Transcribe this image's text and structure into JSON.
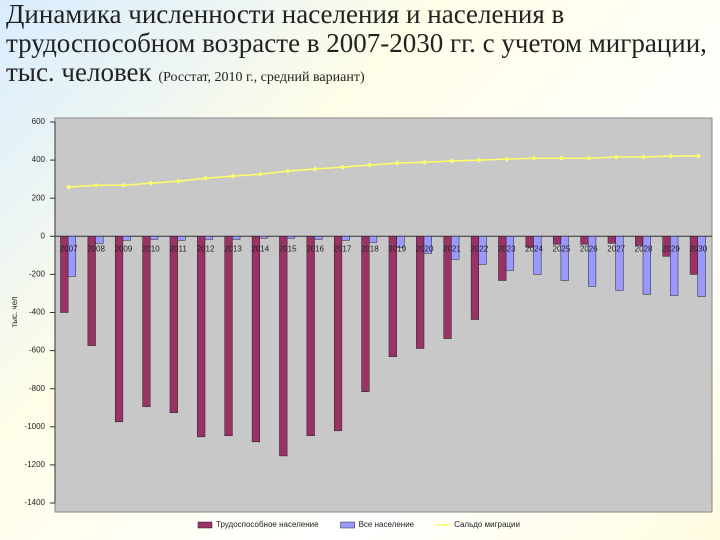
{
  "chart_data": {
    "type": "bar",
    "title": "Динамика численности населения и населения в трудоспособном возрасте в 2007-2030 гг. с учетом миграции, тыс. человек",
    "subtitle": "(Росстат, 2010 г., средний вариант)",
    "y_label": "тыс. чел",
    "categories": [
      "2007",
      "2008",
      "2009",
      "2010",
      "2011",
      "2012",
      "2013",
      "2014",
      "2015",
      "2016",
      "2017",
      "2018",
      "2019",
      "2020",
      "2021",
      "2022",
      "2023",
      "2024",
      "2025",
      "2026",
      "2027",
      "2028",
      "2029",
      "2030"
    ],
    "series": [
      {
        "name": "Трудоспособное население",
        "type": "bar",
        "color": "#993366",
        "values": [
          -400,
          -574,
          -974,
          -895,
          -926,
          -1053,
          -1047,
          -1079,
          -1153,
          -1047,
          -1021,
          -816,
          -632,
          -589,
          -537,
          -437,
          -232,
          -58,
          -42,
          -42,
          -37,
          -47,
          -105,
          -200
        ]
      },
      {
        "name": "Все население",
        "type": "bar",
        "color": "#9999ff",
        "values": [
          -210,
          -37,
          -21,
          -16,
          -21,
          -16,
          -16,
          -10,
          -10,
          -16,
          -21,
          -32,
          -58,
          -89,
          -121,
          -147,
          -179,
          -200,
          -232,
          -263,
          -284,
          -305,
          -311,
          -316
        ]
      },
      {
        "name": "Сальдо миграции",
        "type": "line",
        "color": "#ffff66",
        "values": [
          258,
          268,
          268,
          279,
          289,
          305,
          316,
          326,
          342,
          353,
          363,
          374,
          384,
          389,
          395,
          400,
          405,
          410,
          410,
          410,
          416,
          416,
          421,
          421
        ]
      }
    ],
    "ylim": [
      -1400,
      600
    ],
    "yticks": [
      600,
      400,
      200,
      0,
      -200,
      -400,
      -600,
      -800,
      -1000,
      -1200,
      -1400
    ],
    "grid": false,
    "legend": "bottom"
  }
}
